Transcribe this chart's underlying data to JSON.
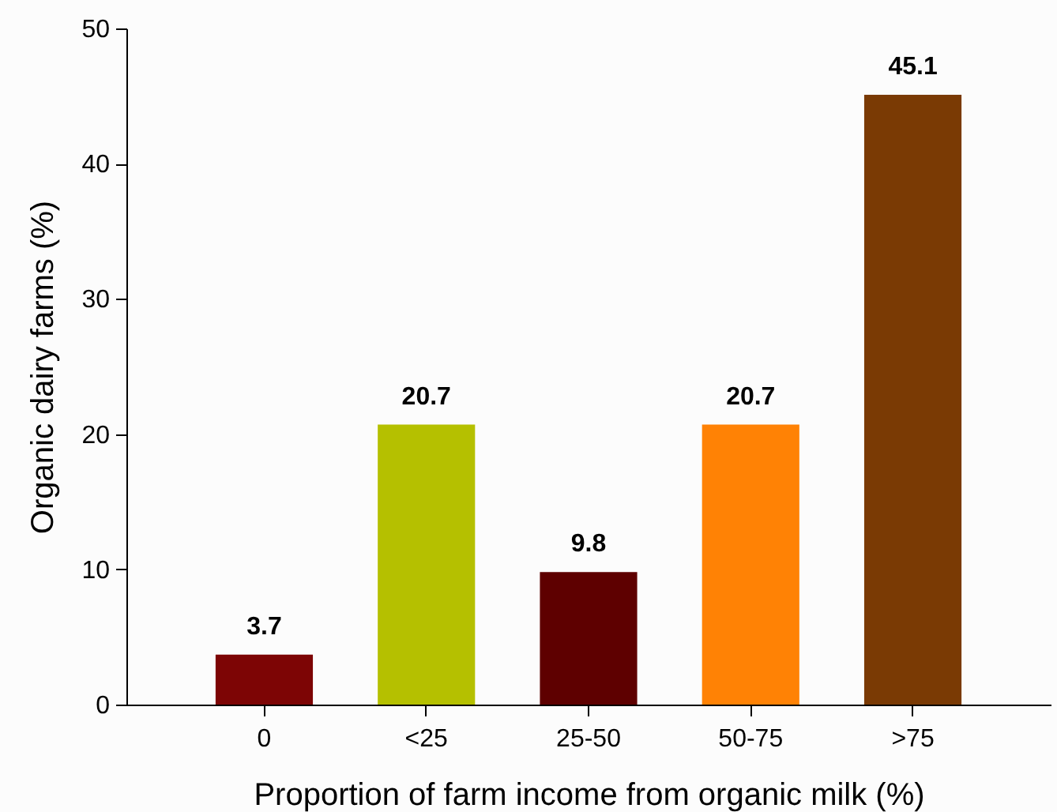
{
  "chart_data": {
    "type": "bar",
    "xlabel": "Proportion of farm income from organic milk (%)",
    "ylabel": "Organic dairy farms (%)",
    "categories": [
      "0",
      "<25",
      "25-50",
      "50-75",
      ">75"
    ],
    "values": [
      3.7,
      20.7,
      9.8,
      20.7,
      45.1
    ],
    "colors": [
      "#7d0505",
      "#b5c000",
      "#5e0000",
      "#ff8205",
      "#7a3a04"
    ],
    "ylim": [
      0,
      50
    ],
    "yticks": [
      0,
      10,
      20,
      30,
      40,
      50
    ],
    "grid": false,
    "data_labels": true
  }
}
